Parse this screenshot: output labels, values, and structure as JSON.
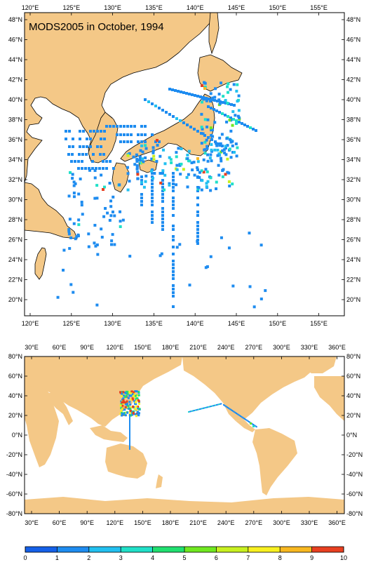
{
  "title": "MODS2005 in October, 1994",
  "colors": {
    "land": "#f4c887",
    "ocean": "#ffffff",
    "frame": "#000000",
    "scale": [
      "#1560e8",
      "#1e8cf0",
      "#22c0f0",
      "#20e0c8",
      "#20e070",
      "#70e820",
      "#c8f020",
      "#f8f020",
      "#f8b820",
      "#e84020"
    ]
  },
  "regional_map": {
    "lon_labels": [
      "120°E",
      "125°E",
      "130°E",
      "135°E",
      "140°E",
      "145°E",
      "150°E",
      "155°E"
    ],
    "lat_labels": [
      "48°N",
      "46°N",
      "44°N",
      "42°N",
      "40°N",
      "38°N",
      "36°N",
      "34°N",
      "32°N",
      "30°N",
      "28°N",
      "26°N",
      "24°N",
      "22°N",
      "20°N"
    ]
  },
  "global_map": {
    "lon_labels": [
      "30°E",
      "60°E",
      "90°E",
      "120°E",
      "150°E",
      "180°E",
      "210°E",
      "240°E",
      "270°E",
      "300°E",
      "330°E",
      "360°E"
    ],
    "lat_labels": [
      "80°N",
      "60°N",
      "40°N",
      "20°N",
      "0°N",
      "-20°N",
      "-40°N",
      "-60°N",
      "-80°N"
    ]
  },
  "colorbar": {
    "labels": [
      "0",
      "1",
      "2",
      "3",
      "4",
      "5",
      "6",
      "7",
      "8",
      "9",
      "10"
    ]
  }
}
